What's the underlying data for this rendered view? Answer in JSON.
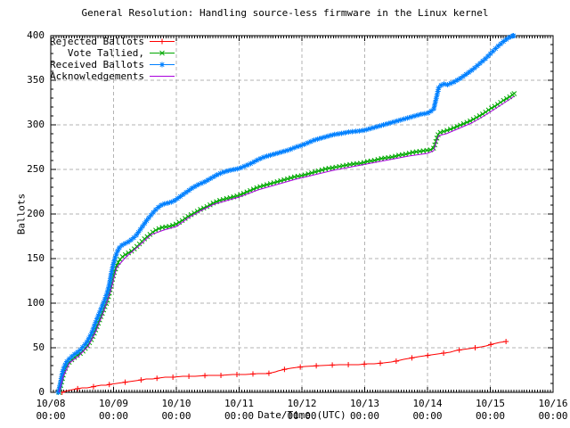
{
  "title": "General Resolution: Handling source-less firmware in the Linux kernel",
  "chart_data": {
    "type": "line",
    "title": "General Resolution: Handling source-less firmware in the Linux kernel",
    "xlabel": "Date/Time (UTC)",
    "ylabel": "Ballots",
    "x_unit": "days since 10/08 00:00 UTC",
    "xlim": [
      0,
      8
    ],
    "ylim": [
      0,
      400
    ],
    "grid": true,
    "legend_position": "top-left",
    "xtick_labels": [
      {
        "date": "10/08",
        "time": "00:00"
      },
      {
        "date": "10/09",
        "time": "00:00"
      },
      {
        "date": "10/10",
        "time": "00:00"
      },
      {
        "date": "10/11",
        "time": "00:00"
      },
      {
        "date": "10/12",
        "time": "00:00"
      },
      {
        "date": "10/13",
        "time": "00:00"
      },
      {
        "date": "10/14",
        "time": "00:00"
      },
      {
        "date": "10/15",
        "time": "00:00"
      },
      {
        "date": "10/16",
        "time": "00:00"
      }
    ],
    "ytick_labels": [
      "0",
      "50",
      "100",
      "150",
      "200",
      "250",
      "300",
      "350",
      "400"
    ],
    "series": [
      {
        "name": "Rejected Ballots",
        "color": "#ff0000",
        "marker": "plus",
        "points": [
          [
            0.18,
            0
          ],
          [
            0.22,
            1
          ],
          [
            0.28,
            2
          ],
          [
            0.35,
            3
          ],
          [
            0.42,
            4
          ],
          [
            0.5,
            5
          ],
          [
            0.58,
            5
          ],
          [
            0.65,
            6
          ],
          [
            0.72,
            7
          ],
          [
            0.8,
            8
          ],
          [
            0.88,
            8
          ],
          [
            0.95,
            9
          ],
          [
            1.05,
            10
          ],
          [
            1.15,
            11
          ],
          [
            1.25,
            12
          ],
          [
            1.35,
            13
          ],
          [
            1.45,
            14
          ],
          [
            1.52,
            15
          ],
          [
            1.62,
            15
          ],
          [
            1.72,
            16
          ],
          [
            1.82,
            17
          ],
          [
            1.95,
            17
          ],
          [
            2.1,
            18
          ],
          [
            2.3,
            18
          ],
          [
            2.5,
            19
          ],
          [
            2.7,
            19
          ],
          [
            2.9,
            20
          ],
          [
            3.1,
            20
          ],
          [
            3.3,
            21
          ],
          [
            3.45,
            21
          ],
          [
            3.52,
            22
          ],
          [
            3.58,
            23
          ],
          [
            3.62,
            24
          ],
          [
            3.68,
            25
          ],
          [
            3.74,
            26
          ],
          [
            3.82,
            27
          ],
          [
            3.92,
            28
          ],
          [
            4.05,
            29
          ],
          [
            4.3,
            30
          ],
          [
            4.6,
            31
          ],
          [
            4.9,
            31
          ],
          [
            5.05,
            32
          ],
          [
            5.15,
            32
          ],
          [
            5.3,
            33
          ],
          [
            5.42,
            34
          ],
          [
            5.5,
            35
          ],
          [
            5.56,
            36
          ],
          [
            5.62,
            37
          ],
          [
            5.7,
            38
          ],
          [
            5.78,
            39
          ],
          [
            5.86,
            40
          ],
          [
            5.96,
            41
          ],
          [
            6.06,
            42
          ],
          [
            6.16,
            43
          ],
          [
            6.26,
            44
          ],
          [
            6.36,
            45
          ],
          [
            6.46,
            47
          ],
          [
            6.56,
            48
          ],
          [
            6.66,
            49
          ],
          [
            6.76,
            50
          ],
          [
            6.86,
            51
          ],
          [
            6.93,
            52
          ],
          [
            6.98,
            53
          ],
          [
            7.03,
            54
          ],
          [
            7.09,
            55
          ],
          [
            7.15,
            56
          ],
          [
            7.25,
            57
          ]
        ]
      },
      {
        "name": "Vote Tallied,",
        "color": "#00a800",
        "marker": "cross",
        "points": [
          [
            0.13,
            0
          ],
          [
            0.15,
            5
          ],
          [
            0.17,
            11
          ],
          [
            0.19,
            17
          ],
          [
            0.21,
            23
          ],
          [
            0.24,
            28
          ],
          [
            0.27,
            32
          ],
          [
            0.31,
            35
          ],
          [
            0.36,
            38
          ],
          [
            0.41,
            41
          ],
          [
            0.46,
            43
          ],
          [
            0.51,
            46
          ],
          [
            0.56,
            50
          ],
          [
            0.6,
            54
          ],
          [
            0.64,
            58
          ],
          [
            0.68,
            64
          ],
          [
            0.72,
            71
          ],
          [
            0.76,
            78
          ],
          [
            0.8,
            85
          ],
          [
            0.84,
            92
          ],
          [
            0.88,
            99
          ],
          [
            0.92,
            107
          ],
          [
            0.95,
            116
          ],
          [
            0.98,
            126
          ],
          [
            1.01,
            134
          ],
          [
            1.05,
            142
          ],
          [
            1.09,
            148
          ],
          [
            1.14,
            152
          ],
          [
            1.2,
            155
          ],
          [
            1.28,
            158
          ],
          [
            1.35,
            162
          ],
          [
            1.42,
            167
          ],
          [
            1.49,
            172
          ],
          [
            1.56,
            176
          ],
          [
            1.63,
            180
          ],
          [
            1.7,
            183
          ],
          [
            1.78,
            185
          ],
          [
            1.88,
            186
          ],
          [
            1.98,
            188
          ],
          [
            2.08,
            192
          ],
          [
            2.18,
            197
          ],
          [
            2.28,
            201
          ],
          [
            2.38,
            205
          ],
          [
            2.48,
            208
          ],
          [
            2.58,
            212
          ],
          [
            2.68,
            215
          ],
          [
            2.78,
            217
          ],
          [
            2.9,
            219
          ],
          [
            3.0,
            221
          ],
          [
            3.1,
            224
          ],
          [
            3.2,
            227
          ],
          [
            3.3,
            230
          ],
          [
            3.4,
            232
          ],
          [
            3.5,
            234
          ],
          [
            3.6,
            236
          ],
          [
            3.7,
            238
          ],
          [
            3.8,
            240
          ],
          [
            3.9,
            242
          ],
          [
            4.0,
            243
          ],
          [
            4.1,
            245
          ],
          [
            4.2,
            247
          ],
          [
            4.3,
            249
          ],
          [
            4.4,
            251
          ],
          [
            4.5,
            252
          ],
          [
            4.65,
            254
          ],
          [
            4.8,
            256
          ],
          [
            4.95,
            257
          ],
          [
            5.05,
            259
          ],
          [
            5.15,
            260
          ],
          [
            5.25,
            262
          ],
          [
            5.35,
            263
          ],
          [
            5.45,
            264
          ],
          [
            5.55,
            266
          ],
          [
            5.65,
            267
          ],
          [
            5.75,
            269
          ],
          [
            5.85,
            270
          ],
          [
            5.95,
            271
          ],
          [
            6.05,
            272
          ],
          [
            6.1,
            274
          ],
          [
            6.14,
            283
          ],
          [
            6.18,
            291
          ],
          [
            6.28,
            293
          ],
          [
            6.4,
            296
          ],
          [
            6.5,
            299
          ],
          [
            6.6,
            302
          ],
          [
            6.7,
            305
          ],
          [
            6.8,
            309
          ],
          [
            6.9,
            313
          ],
          [
            7.0,
            318
          ],
          [
            7.1,
            322
          ],
          [
            7.2,
            327
          ],
          [
            7.3,
            331
          ],
          [
            7.38,
            335
          ]
        ]
      },
      {
        "name": "Received Ballots",
        "color": "#0080ff",
        "marker": "star",
        "points": [
          [
            0.12,
            0
          ],
          [
            0.14,
            6
          ],
          [
            0.16,
            13
          ],
          [
            0.18,
            20
          ],
          [
            0.2,
            26
          ],
          [
            0.23,
            31
          ],
          [
            0.26,
            35
          ],
          [
            0.3,
            38
          ],
          [
            0.35,
            41
          ],
          [
            0.4,
            44
          ],
          [
            0.45,
            46
          ],
          [
            0.5,
            50
          ],
          [
            0.55,
            54
          ],
          [
            0.58,
            57
          ],
          [
            0.62,
            62
          ],
          [
            0.66,
            68
          ],
          [
            0.7,
            76
          ],
          [
            0.74,
            83
          ],
          [
            0.78,
            90
          ],
          [
            0.82,
            97
          ],
          [
            0.86,
            104
          ],
          [
            0.9,
            112
          ],
          [
            0.93,
            120
          ],
          [
            0.96,
            132
          ],
          [
            1.0,
            145
          ],
          [
            1.03,
            152
          ],
          [
            1.06,
            158
          ],
          [
            1.1,
            163
          ],
          [
            1.15,
            166
          ],
          [
            1.22,
            168
          ],
          [
            1.3,
            172
          ],
          [
            1.36,
            176
          ],
          [
            1.42,
            182
          ],
          [
            1.48,
            188
          ],
          [
            1.54,
            194
          ],
          [
            1.6,
            199
          ],
          [
            1.66,
            204
          ],
          [
            1.72,
            208
          ],
          [
            1.78,
            211
          ],
          [
            1.85,
            212
          ],
          [
            1.95,
            214
          ],
          [
            2.05,
            219
          ],
          [
            2.15,
            224
          ],
          [
            2.25,
            229
          ],
          [
            2.35,
            233
          ],
          [
            2.45,
            236
          ],
          [
            2.55,
            240
          ],
          [
            2.65,
            244
          ],
          [
            2.75,
            247
          ],
          [
            2.85,
            249
          ],
          [
            3.0,
            251
          ],
          [
            3.1,
            254
          ],
          [
            3.2,
            257
          ],
          [
            3.3,
            261
          ],
          [
            3.4,
            264
          ],
          [
            3.5,
            266
          ],
          [
            3.6,
            268
          ],
          [
            3.7,
            270
          ],
          [
            3.8,
            272
          ],
          [
            3.9,
            275
          ],
          [
            4.0,
            277
          ],
          [
            4.1,
            280
          ],
          [
            4.2,
            283
          ],
          [
            4.3,
            285
          ],
          [
            4.4,
            287
          ],
          [
            4.5,
            289
          ],
          [
            4.6,
            290
          ],
          [
            4.75,
            292
          ],
          [
            4.9,
            293
          ],
          [
            5.0,
            294
          ],
          [
            5.1,
            296
          ],
          [
            5.2,
            298
          ],
          [
            5.3,
            300
          ],
          [
            5.4,
            302
          ],
          [
            5.5,
            304
          ],
          [
            5.6,
            306
          ],
          [
            5.7,
            308
          ],
          [
            5.8,
            310
          ],
          [
            5.9,
            312
          ],
          [
            6.0,
            313
          ],
          [
            6.05,
            315
          ],
          [
            6.1,
            318
          ],
          [
            6.14,
            330
          ],
          [
            6.18,
            342
          ],
          [
            6.24,
            346
          ],
          [
            6.32,
            345
          ],
          [
            6.42,
            348
          ],
          [
            6.52,
            352
          ],
          [
            6.62,
            357
          ],
          [
            6.72,
            362
          ],
          [
            6.82,
            368
          ],
          [
            6.92,
            374
          ],
          [
            7.02,
            381
          ],
          [
            7.12,
            388
          ],
          [
            7.22,
            394
          ],
          [
            7.3,
            398
          ],
          [
            7.37,
            400
          ]
        ]
      },
      {
        "name": "Acknowledgements",
        "color": "#aa00dd",
        "marker": "none",
        "points": [
          [
            0.13,
            0
          ],
          [
            0.2,
            18
          ],
          [
            0.3,
            33
          ],
          [
            0.45,
            41
          ],
          [
            0.6,
            52
          ],
          [
            0.72,
            69
          ],
          [
            0.84,
            90
          ],
          [
            0.95,
            113
          ],
          [
            1.05,
            140
          ],
          [
            1.2,
            152
          ],
          [
            1.4,
            164
          ],
          [
            1.6,
            177
          ],
          [
            1.8,
            182
          ],
          [
            2.0,
            186
          ],
          [
            2.2,
            196
          ],
          [
            2.4,
            204
          ],
          [
            2.6,
            211
          ],
          [
            2.8,
            215
          ],
          [
            3.0,
            219
          ],
          [
            3.3,
            227
          ],
          [
            3.6,
            233
          ],
          [
            3.9,
            239
          ],
          [
            4.2,
            244
          ],
          [
            4.5,
            249
          ],
          [
            4.8,
            253
          ],
          [
            5.1,
            257
          ],
          [
            5.4,
            261
          ],
          [
            5.7,
            265
          ],
          [
            6.0,
            268
          ],
          [
            6.1,
            271
          ],
          [
            6.14,
            281
          ],
          [
            6.18,
            288
          ],
          [
            6.3,
            290
          ],
          [
            6.5,
            296
          ],
          [
            6.7,
            302
          ],
          [
            6.9,
            310
          ],
          [
            7.1,
            319
          ],
          [
            7.25,
            326
          ],
          [
            7.38,
            332
          ]
        ]
      }
    ]
  }
}
